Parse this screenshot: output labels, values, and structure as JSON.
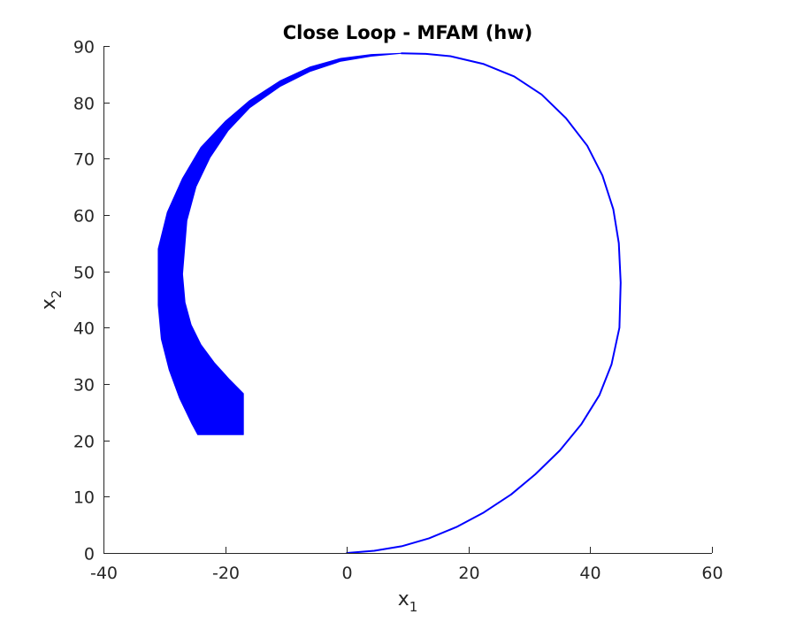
{
  "chart_data": {
    "type": "line",
    "title": "Close Loop - MFAM (hw)",
    "xlabel": {
      "main": "x",
      "sub": "1"
    },
    "ylabel": {
      "main": "x",
      "sub": "2"
    },
    "xlim": [
      -40,
      60
    ],
    "ylim": [
      0,
      90
    ],
    "xticks": [
      -40,
      -20,
      0,
      20,
      40,
      60
    ],
    "yticks": [
      0,
      10,
      20,
      30,
      40,
      50,
      60,
      70,
      80,
      90
    ],
    "xtick_labels": [
      "-40",
      "-20",
      "0",
      "20",
      "40",
      "60"
    ],
    "ytick_labels": [
      "0",
      "10",
      "20",
      "30",
      "40",
      "50",
      "60",
      "70",
      "80",
      "90"
    ],
    "grid": false,
    "legend": "none",
    "series": [
      {
        "color": "#0000ff",
        "kind": "line",
        "x": [
          0,
          4.5,
          9,
          13.5,
          18,
          22.5,
          27,
          31,
          35,
          38.5,
          41.5,
          43.5,
          44.8,
          45,
          44.7,
          43.8,
          42,
          39.5,
          36,
          32,
          27.5,
          22.5,
          17,
          13,
          9
        ],
        "y": [
          0,
          0.4,
          1.2,
          2.6,
          4.6,
          7.2,
          10.4,
          14,
          18.2,
          22.8,
          28,
          33.5,
          40,
          48,
          55,
          61,
          67,
          72.3,
          77.2,
          81.4,
          84.6,
          86.8,
          88.2,
          88.6,
          88.7
        ]
      },
      {
        "color": "#0000ff",
        "kind": "filled-band",
        "outer_x": [
          9,
          4,
          -1,
          -6,
          -11,
          -16,
          -20,
          -24,
          -27,
          -29.5,
          -31,
          -31,
          -30.5,
          -29.2,
          -27.5,
          -25.5,
          -24.5,
          -17
        ],
        "outer_y": [
          88.7,
          88.5,
          87.8,
          86.3,
          83.8,
          80.3,
          76.6,
          72,
          66.5,
          60.5,
          54,
          44,
          38,
          32.5,
          27.5,
          23,
          21,
          21
        ],
        "inner_x": [
          9,
          4,
          -1,
          -6,
          -11,
          -16,
          -19.5,
          -22.5,
          -24.8,
          -26.3,
          -27,
          -26.6,
          -25.6,
          -24,
          -21.8,
          -19.3,
          -17,
          -17
        ],
        "inner_y": [
          88.7,
          88.2,
          87.3,
          85.5,
          82.8,
          79,
          75,
          70.2,
          65,
          59,
          49.5,
          44.5,
          40.5,
          37,
          33.8,
          30.8,
          28.3,
          21
        ]
      }
    ]
  }
}
